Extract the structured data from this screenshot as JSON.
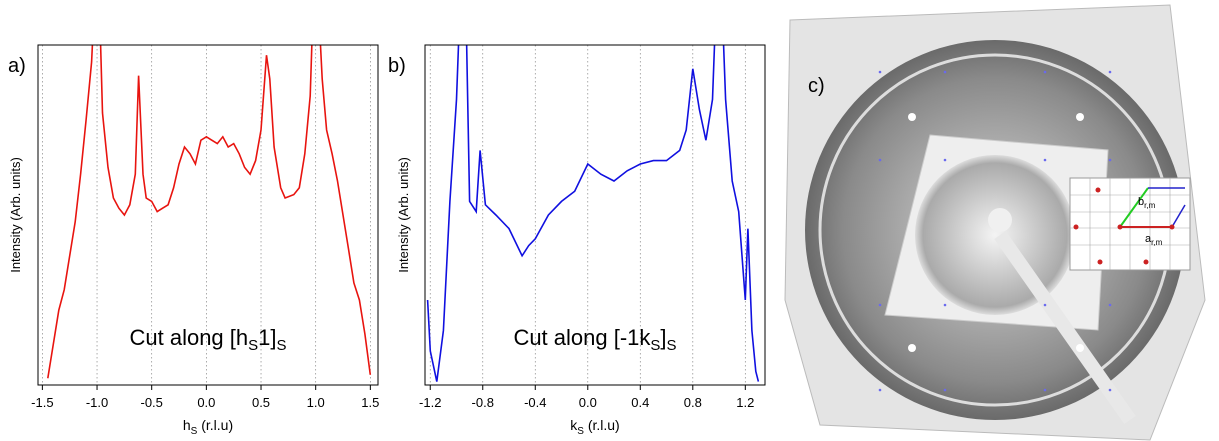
{
  "chart_data": [
    {
      "type": "line",
      "panel_label": "a)",
      "y_label": "Intensity (Arb. units)",
      "x_label": [
        "h",
        "S",
        " (r.l.u)"
      ],
      "annotation": [
        "Cut along [h",
        "S",
        "1]",
        "S"
      ],
      "color": "#e8140f",
      "grid": true,
      "xlim": [
        -1.54,
        1.57
      ],
      "ylim": [
        0,
        100
      ],
      "xticks": [
        -1.5,
        {
          "value": -1,
          "label": "-1.0"
        },
        -0.5,
        {
          "value": 0,
          "label": "0.0"
        },
        0.5,
        {
          "value": 1,
          "label": "1.0"
        },
        1.5
      ],
      "x": [
        -1.45,
        -1.4,
        -1.35,
        -1.3,
        -1.25,
        -1.2,
        -1.15,
        -1.1,
        -1.05,
        -1.02,
        -0.98,
        -0.95,
        -0.9,
        -0.85,
        -0.8,
        -0.75,
        -0.7,
        -0.65,
        -0.62,
        -0.58,
        -0.55,
        -0.5,
        -0.45,
        -0.4,
        -0.35,
        -0.3,
        -0.25,
        -0.2,
        -0.15,
        -0.1,
        -0.05,
        0,
        0.05,
        0.1,
        0.15,
        0.2,
        0.25,
        0.3,
        0.35,
        0.4,
        0.45,
        0.5,
        0.55,
        0.58,
        0.62,
        0.68,
        0.72,
        0.8,
        0.85,
        0.9,
        0.95,
        0.98,
        1.02,
        1.06,
        1.1,
        1.15,
        1.2,
        1.25,
        1.3,
        1.35,
        1.4,
        1.45,
        1.5
      ],
      "values": [
        2,
        12,
        22,
        28,
        38,
        48,
        62,
        78,
        95,
        115,
        115,
        80,
        64,
        55,
        52,
        50,
        53,
        62,
        91,
        62,
        55,
        54,
        51,
        52,
        53,
        58,
        65,
        70,
        68,
        65,
        72,
        73,
        72,
        71,
        73,
        70,
        71,
        68,
        64,
        62,
        66,
        75,
        97,
        90,
        70,
        58,
        55,
        56,
        58,
        68,
        85,
        115,
        115,
        90,
        75,
        68,
        60,
        50,
        40,
        30,
        25,
        15,
        3
      ]
    },
    {
      "type": "line",
      "panel_label": "b)",
      "y_label": "Intensity (Arb. units)",
      "x_label": [
        "k",
        "S",
        " (r.l.u)"
      ],
      "annotation": [
        "Cut along [-1k",
        "S",
        "]",
        "S"
      ],
      "color": "#1010e0",
      "grid": true,
      "xlim": [
        -1.24,
        1.35
      ],
      "ylim": [
        0,
        100
      ],
      "xticks": [
        -1.2,
        -0.8,
        -0.4,
        {
          "value": 0,
          "label": "0.0"
        },
        0.4,
        0.8,
        1.2
      ],
      "x": [
        -1.22,
        -1.2,
        -1.15,
        -1.1,
        -1.05,
        -1.0,
        -0.97,
        -0.93,
        -0.9,
        -0.85,
        -0.82,
        -0.78,
        -0.7,
        -0.6,
        -0.5,
        -0.45,
        -0.4,
        -0.3,
        -0.2,
        -0.1,
        0,
        0.1,
        0.2,
        0.3,
        0.4,
        0.5,
        0.6,
        0.7,
        0.75,
        0.8,
        0.85,
        0.9,
        0.95,
        0.98,
        1.02,
        1.05,
        1.1,
        1.15,
        1.2,
        1.22,
        1.25,
        1.28,
        1.3
      ],
      "values": [
        25,
        10,
        1,
        16,
        54,
        84,
        115,
        115,
        54,
        51,
        69,
        53,
        50,
        46,
        38,
        41,
        43,
        50,
        54,
        57,
        65,
        62,
        60,
        63,
        65,
        66,
        66,
        69,
        75,
        93,
        81,
        72,
        84,
        115,
        115,
        84,
        60,
        51,
        25,
        46,
        16,
        4,
        1
      ]
    }
  ],
  "image": {
    "panel_label": "c)",
    "labels": [
      [
        "b",
        "r,m"
      ],
      [
        "a",
        "r,m"
      ]
    ]
  }
}
